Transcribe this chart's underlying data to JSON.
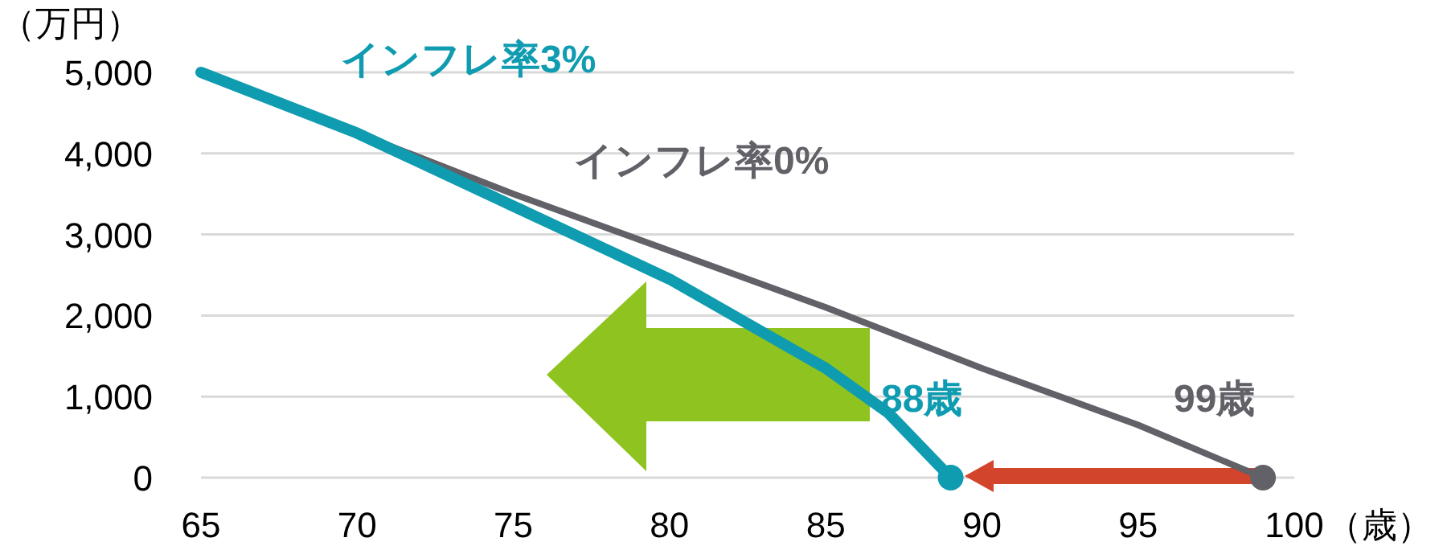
{
  "chart_data": {
    "type": "line",
    "ylabel": "（万円）",
    "xlabel": "（歳）",
    "xlim": [
      65,
      100
    ],
    "xticks": [
      65,
      70,
      75,
      80,
      85,
      90,
      95,
      100
    ],
    "ylim": [
      0,
      5000
    ],
    "yticks": [
      {
        "value": 0,
        "label": "0"
      },
      {
        "value": 1000,
        "label": "1,000"
      },
      {
        "value": 2000,
        "label": "2,000"
      },
      {
        "value": 3000,
        "label": "3,000"
      },
      {
        "value": 4000,
        "label": "4,000"
      },
      {
        "value": 5000,
        "label": "5,000"
      }
    ],
    "grid": "y",
    "line_style": "solid",
    "series": [
      {
        "color": "#636168",
        "x": [
          65,
          70,
          75,
          80,
          85,
          90,
          95,
          99
        ],
        "values": [
          5000,
          4250,
          3500,
          2800,
          2100,
          1350,
          650,
          0
        ]
      },
      {
        "color": "#0f9bb0",
        "x": [
          65,
          70,
          75,
          80,
          85,
          87,
          89
        ],
        "values": [
          5000,
          4250,
          3350,
          2450,
          1350,
          800,
          0
        ]
      },
      {
        "type": "scatter",
        "color": "#0f9bb0",
        "x": [
          89
        ],
        "values": [
          0
        ]
      },
      {
        "type": "scatter",
        "color": "#636168",
        "x": [
          99
        ],
        "values": [
          0
        ]
      }
    ],
    "annotations": [
      "インフレ率3%",
      "インフレ率0%",
      "88歳",
      "99歳"
    ]
  }
}
